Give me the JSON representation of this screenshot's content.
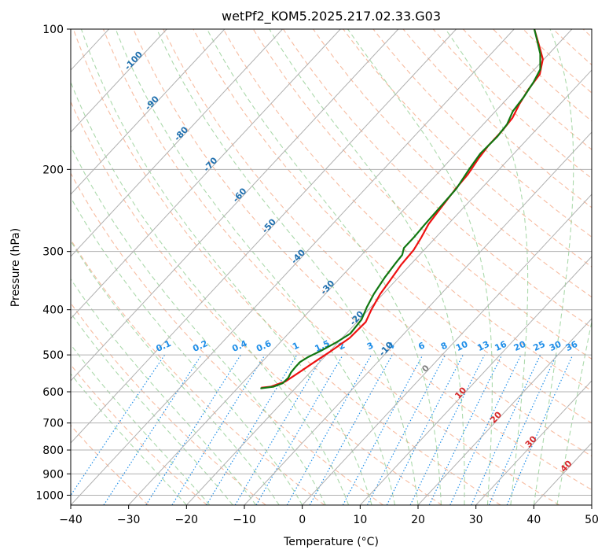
{
  "chart_data": {
    "type": "line",
    "subtype": "skew-T log-P diagram",
    "title": "wetPf2_KOM5.2025.217.02.33.G03",
    "xlabel": "Temperature (°C)",
    "ylabel": "Pressure (hPa)",
    "xlim": [
      -40,
      50
    ],
    "ylim": [
      1050,
      100
    ],
    "y_scale": "log",
    "skew_deg_per_decade": 75,
    "grid": true,
    "x_ticks": [
      "−40",
      "−30",
      "−20",
      "−10",
      "0",
      "10",
      "20",
      "30",
      "40",
      "50"
    ],
    "y_ticks": [
      "100",
      "200",
      "300",
      "400",
      "500",
      "600",
      "700",
      "800",
      "900",
      "1000"
    ],
    "isotherm_labels": [
      "-100",
      "-90",
      "-80",
      "-70",
      "-60",
      "-50",
      "-40",
      "-30",
      "-20",
      "-10",
      "0",
      "10",
      "20",
      "30",
      "40"
    ],
    "mixing_ratio_labels": [
      "0.1",
      "0.2",
      "0.4",
      "0.6",
      "1",
      "1.5",
      "2",
      "3",
      "4",
      "6",
      "8",
      "10",
      "13",
      "16",
      "20",
      "25",
      "30",
      "36"
    ],
    "colors": {
      "temperature": "#ee1111",
      "dewpoint": "#117711",
      "isotherm_label_cold": "#1f6fae",
      "isotherm_label_warm": "#d62728",
      "isotherm_label_zero": "#808080",
      "mixing_ratio": "#1f8ee8",
      "dry_adiabat": "#f4a582",
      "moist_adiabat": "#8fcc8f",
      "grid": "#b0b0b0"
    },
    "series": [
      {
        "name": "Temperature",
        "points": [
          {
            "p": 588,
            "t": -26.0
          },
          {
            "p": 585,
            "t": -24.5
          },
          {
            "p": 570,
            "t": -22.8
          },
          {
            "p": 545,
            "t": -21.9
          },
          {
            "p": 520,
            "t": -21.0
          },
          {
            "p": 490,
            "t": -19.8
          },
          {
            "p": 460,
            "t": -18.7
          },
          {
            "p": 425,
            "t": -18.5
          },
          {
            "p": 400,
            "t": -19.5
          },
          {
            "p": 370,
            "t": -20.5
          },
          {
            "p": 345,
            "t": -21.0
          },
          {
            "p": 320,
            "t": -21.6
          },
          {
            "p": 298,
            "t": -21.8
          },
          {
            "p": 280,
            "t": -22.5
          },
          {
            "p": 262,
            "t": -23.4
          },
          {
            "p": 245,
            "t": -23.8
          },
          {
            "p": 232,
            "t": -24.1
          },
          {
            "p": 220,
            "t": -24.4
          },
          {
            "p": 205,
            "t": -24.6
          },
          {
            "p": 190,
            "t": -25.3
          },
          {
            "p": 178,
            "t": -25.7
          },
          {
            "p": 165,
            "t": -25.7
          },
          {
            "p": 155,
            "t": -26.0
          },
          {
            "p": 145,
            "t": -27.0
          },
          {
            "p": 135,
            "t": -27.8
          },
          {
            "p": 125,
            "t": -28.3
          },
          {
            "p": 116,
            "t": -30.2
          },
          {
            "p": 108,
            "t": -33.2
          },
          {
            "p": 100,
            "t": -36.5
          }
        ]
      },
      {
        "name": "Dewpoint",
        "points": [
          {
            "p": 590,
            "t": -26.0
          },
          {
            "p": 585,
            "t": -24.0
          },
          {
            "p": 575,
            "t": -23.0
          },
          {
            "p": 560,
            "t": -22.9
          },
          {
            "p": 545,
            "t": -23.3
          },
          {
            "p": 530,
            "t": -23.4
          },
          {
            "p": 518,
            "t": -23.4
          },
          {
            "p": 505,
            "t": -22.8
          },
          {
            "p": 490,
            "t": -21.6
          },
          {
            "p": 470,
            "t": -20.3
          },
          {
            "p": 450,
            "t": -19.3
          },
          {
            "p": 420,
            "t": -19.6
          },
          {
            "p": 395,
            "t": -20.7
          },
          {
            "p": 370,
            "t": -21.6
          },
          {
            "p": 340,
            "t": -22.4
          },
          {
            "p": 318,
            "t": -22.8
          },
          {
            "p": 305,
            "t": -23.0
          },
          {
            "p": 295,
            "t": -23.8
          },
          {
            "p": 280,
            "t": -23.8
          },
          {
            "p": 262,
            "t": -24.0
          },
          {
            "p": 245,
            "t": -24.1
          },
          {
            "p": 232,
            "t": -24.2
          },
          {
            "p": 220,
            "t": -24.3
          },
          {
            "p": 200,
            "t": -25.2
          },
          {
            "p": 185,
            "t": -25.8
          },
          {
            "p": 170,
            "t": -25.6
          },
          {
            "p": 160,
            "t": -25.9
          },
          {
            "p": 150,
            "t": -27.0
          },
          {
            "p": 140,
            "t": -27.4
          },
          {
            "p": 130,
            "t": -28.1
          },
          {
            "p": 122,
            "t": -29.0
          },
          {
            "p": 113,
            "t": -31.5
          },
          {
            "p": 106,
            "t": -34.1
          },
          {
            "p": 100,
            "t": -36.5
          }
        ]
      }
    ]
  }
}
